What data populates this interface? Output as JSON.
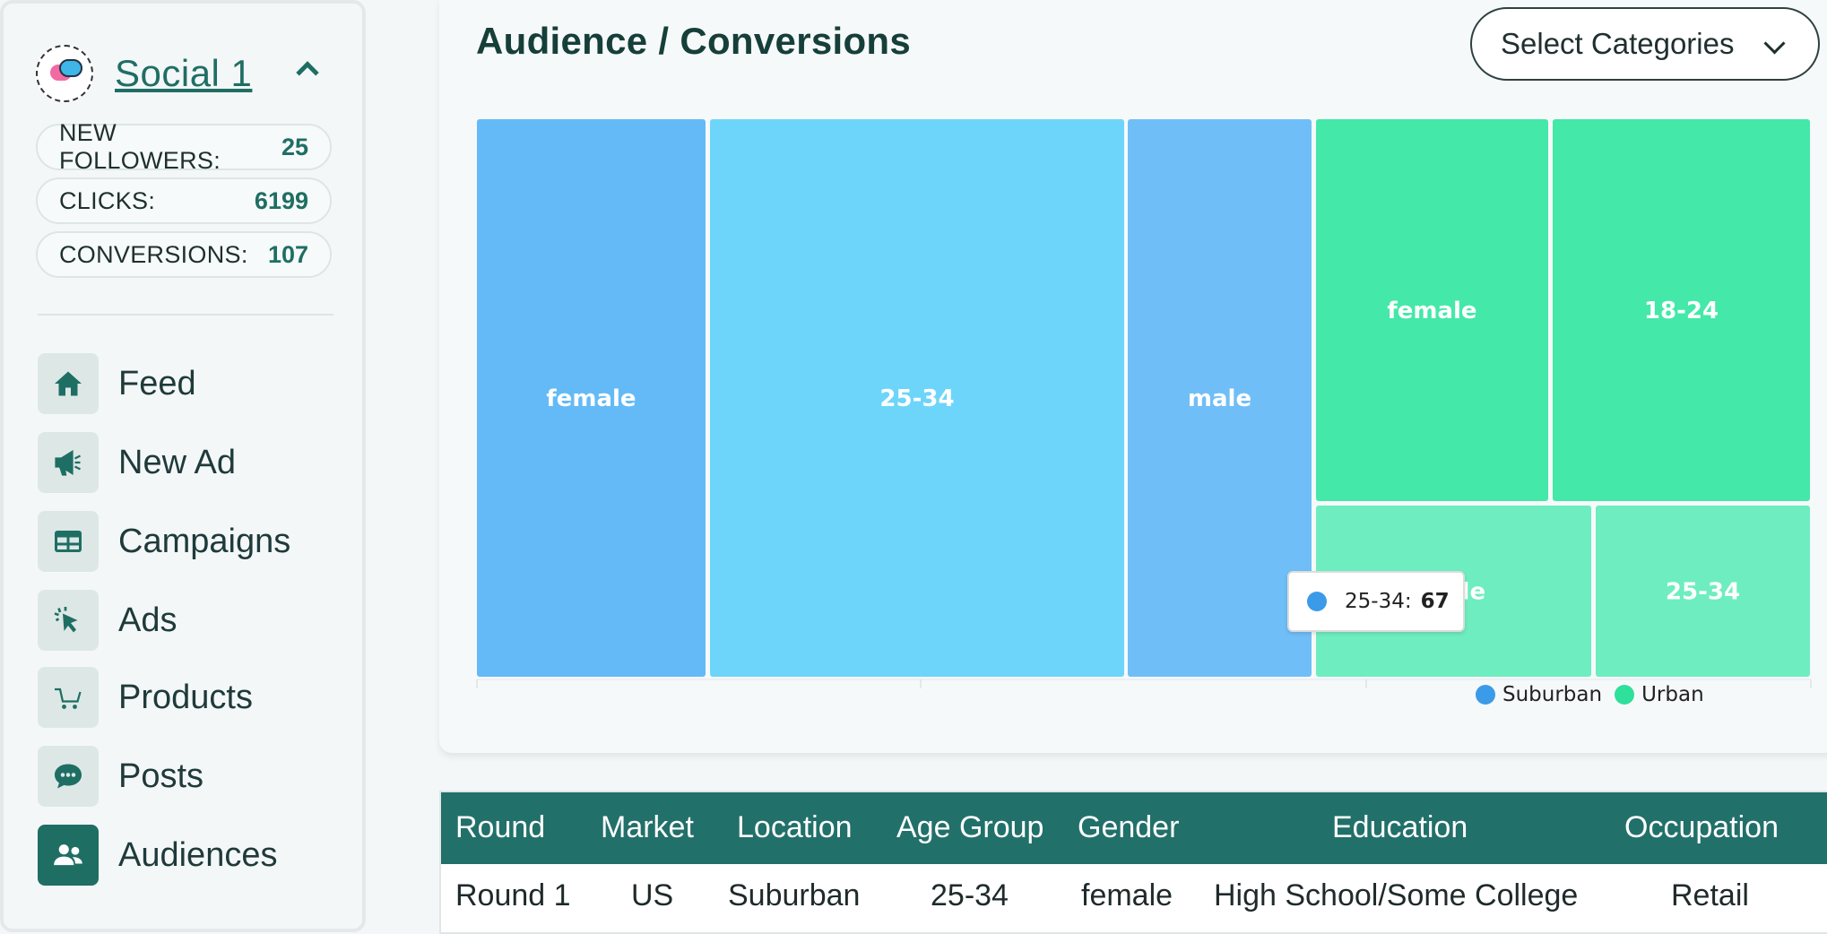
{
  "account": {
    "name": "Social 1",
    "stats": [
      {
        "label": "NEW FOLLOWERS:",
        "value": "25"
      },
      {
        "label": "CLICKS:",
        "value": "6199"
      },
      {
        "label": "CONVERSIONS:",
        "value": "107"
      }
    ]
  },
  "nav": [
    {
      "label": "Feed",
      "icon": "home-icon"
    },
    {
      "label": "New Ad",
      "icon": "megaphone-icon"
    },
    {
      "label": "Campaigns",
      "icon": "table-icon"
    },
    {
      "label": "Ads",
      "icon": "cursor-click-icon"
    },
    {
      "label": "Products",
      "icon": "cart-icon"
    },
    {
      "label": "Posts",
      "icon": "chat-bubble-icon"
    },
    {
      "label": "Audiences",
      "icon": "users-icon",
      "active": true
    }
  ],
  "main": {
    "title": "Audience / Conversions",
    "select_label": "Select Categories"
  },
  "chart_data": {
    "type": "treemap",
    "series": [
      {
        "name": "Suburban",
        "color": "#3b9be8",
        "nodes": [
          {
            "label": "female",
            "color": "#64baf6"
          },
          {
            "label": "25-34",
            "value": 67,
            "color": "#6dd5fa"
          },
          {
            "label": "male",
            "color": "#70bef7"
          }
        ]
      },
      {
        "name": "Urban",
        "color": "#2fe09a",
        "nodes": [
          {
            "label": "female",
            "color": "#44e8a9"
          },
          {
            "label": "18-24",
            "color": "#44e8a9"
          },
          {
            "label": "male",
            "color": "#6eedc0"
          },
          {
            "label": "25-34",
            "color": "#6eedc0"
          }
        ]
      }
    ],
    "tooltip": {
      "label": "25-34:",
      "value": "67"
    },
    "legend": [
      {
        "name": "Suburban",
        "color": "#3b9be8"
      },
      {
        "name": "Urban",
        "color": "#2fe09a"
      }
    ]
  },
  "table": {
    "headers": [
      "Round",
      "Market",
      "Location",
      "Age Group",
      "Gender",
      "Education",
      "Occupation"
    ],
    "rows": [
      [
        "Round 1",
        "US",
        "Suburban",
        "25-34",
        "female",
        "High School/Some College",
        "Retail"
      ]
    ]
  }
}
